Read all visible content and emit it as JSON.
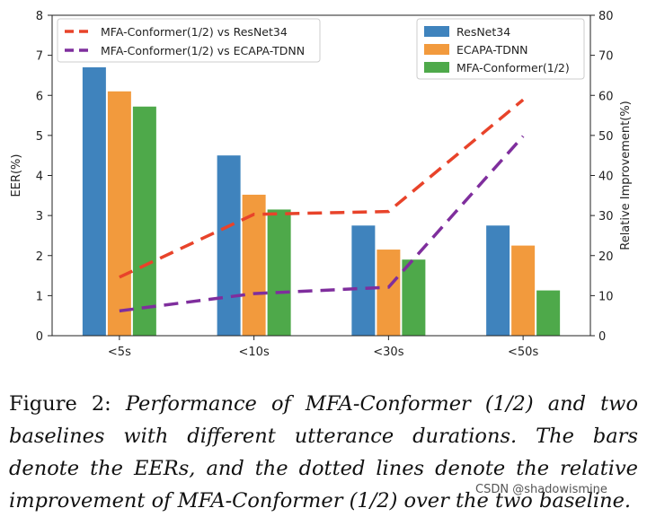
{
  "chart_data": {
    "type": "bar",
    "categories": [
      "<5s",
      "<10s",
      "<30s",
      "<50s"
    ],
    "ylabel": "EER(%)",
    "y2label": "Relative Improvement(%)",
    "ylim": [
      0,
      8
    ],
    "y2lim": [
      0,
      80
    ],
    "yticks": [
      "0",
      "1",
      "2",
      "3",
      "4",
      "5",
      "6",
      "7",
      "8"
    ],
    "y2ticks": [
      "0",
      "10",
      "20",
      "30",
      "40",
      "50",
      "60",
      "70",
      "80"
    ],
    "series": [
      {
        "name": "ResNet34",
        "color": "#3f83bd",
        "values": [
          6.7,
          4.5,
          2.75,
          2.75
        ]
      },
      {
        "name": "ECAPA-TDNN",
        "color": "#f29a3d",
        "values": [
          6.1,
          3.52,
          2.15,
          2.25
        ]
      },
      {
        "name": "MFA-Conformer(1/2)",
        "color": "#4ea94a",
        "values": [
          5.72,
          3.15,
          1.9,
          1.13
        ]
      }
    ],
    "lines": [
      {
        "name": "MFA-Conformer(1/2) vs ResNet34",
        "color": "#e8432a",
        "axis": "right",
        "values": [
          14.6,
          30.3,
          31.0,
          58.9
        ]
      },
      {
        "name": "MFA-Conformer(1/2) vs ECAPA-TDNN",
        "color": "#7f2e9d",
        "axis": "right",
        "values": [
          6.2,
          10.5,
          12.1,
          49.8
        ]
      }
    ],
    "legends": {
      "lines": "top-left",
      "bars": "top-right"
    }
  },
  "caption": {
    "label": "Figure 2: ",
    "text": "Performance of MFA-Conformer (1/2) and two baselines with different utterance durations. The bars denote the EERs, and the dotted lines denote the relative improvement of MFA-Conformer (1/2) over the two baseline."
  },
  "watermark": "CSDN @shadowismine"
}
